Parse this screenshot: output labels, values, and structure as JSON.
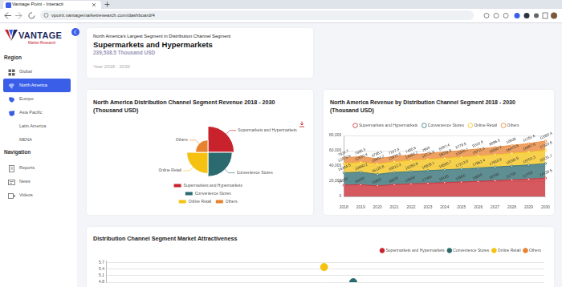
{
  "browser": {
    "tab_title": "Vantage Point - Interacti",
    "url": "vpoint.vantagemarketresearch.com/dashboard/4"
  },
  "sidebar": {
    "logo": "VANTAGE",
    "logo_tagline": "Market Research",
    "region_heading": "Region",
    "regions": [
      {
        "label": "Global"
      },
      {
        "label": "North America",
        "selected": true
      },
      {
        "label": "Europe"
      },
      {
        "label": "Asia Pacific"
      },
      {
        "label": "Latin America"
      },
      {
        "label": "MENA"
      }
    ],
    "navigation_heading": "Navigation",
    "navigation": [
      "Reports",
      "News",
      "Videos"
    ]
  },
  "summary": {
    "heading": "North America's Largest Segment in Distribution Channel Segment",
    "segment": "Supermarkets and Hypermarkets",
    "value": "239,538.5 Thousand USD",
    "period": "Year 2018 - 2030"
  },
  "chart_data": [
    {
      "type": "polarArea",
      "title": "North America Distribution Channel Segment Revenue 2018 - 2030 (Thousand USD)",
      "categories": [
        "Supermarkets and Hypermarkets",
        "Convenience Stores",
        "Online Retail",
        "Others"
      ],
      "values": [
        239538.5,
        222378.8,
        194463.5,
        114651.2
      ],
      "colors": [
        "#c8232c",
        "#2b6a6e",
        "#f5c211",
        "#e8822f"
      ],
      "legend": "bottom",
      "tick_labels": false
    },
    {
      "type": "area",
      "title": "North America Revenue by Distribution Channel Segment 2018 - 2030 (Thousand USD)",
      "categories": [
        "2018",
        "2019",
        "2020",
        "2021",
        "2022",
        "2023",
        "2024",
        "2025",
        "2026",
        "2027",
        "2028",
        "2029",
        "2030"
      ],
      "series": [
        {
          "name": "Supermarkets and Hypermarkets",
          "color": "#c8232c",
          "values": [
            14800,
            15400,
            13900,
            15600,
            16500,
            17300,
            18100,
            18900,
            19800,
            20700,
            21700,
            22700,
            24138.5
          ]
        },
        {
          "name": "Convenience Stores",
          "color": "#2b6a6e",
          "values": [
            16204.5,
            16560.2,
            15120.8,
            16012.3,
            16250.9,
            16538.1,
            16880.7,
            17213.6,
            17562.4,
            17910.8,
            18290.5,
            18702.3,
            19131.7
          ]
        },
        {
          "name": "Online Retail",
          "color": "#f5c211",
          "values": [
            12079.6,
            12830.4,
            13604.2,
            13970.5,
            14388.2,
            14721.6,
            15032.9,
            15360.7,
            15711.3,
            16082.2,
            16473.5,
            16887.6,
            17320.8
          ]
        },
        {
          "name": "Others",
          "color": "#e8822f",
          "values": [
            7531.7,
            7696.3,
            6798.1,
            7107.4,
            7458.5,
            7904,
            8297.4,
            8779.5,
            9310.8,
            9896.5,
            10539,
            11251.6,
            12080.4
          ]
        }
      ],
      "stacked": true,
      "ylim": [
        0,
        80000
      ],
      "yticks": [
        0,
        {
          "value": 20000,
          "label": "20,000"
        },
        {
          "value": 40000,
          "label": "40,000"
        },
        {
          "value": 60000,
          "label": "60,000"
        },
        {
          "value": 80000,
          "label": "80,000"
        }
      ],
      "grid": true,
      "legend": "top",
      "data_labels": true
    },
    {
      "type": "scatter",
      "title": "Distribution Channel Segment Market Attractiveness",
      "series": [
        {
          "name": "Supermarkets and Hypermarkets",
          "color": "#c8232c",
          "x": [],
          "y": []
        },
        {
          "name": "Convenience Stores",
          "color": "#2b6a6e",
          "x": [
            16.9
          ],
          "y": [
            4.8
          ]
        },
        {
          "name": "Online Retail",
          "color": "#f5c211",
          "x": [
            14.9
          ],
          "y": [
            5.5
          ]
        },
        {
          "name": "Others",
          "color": "#e8822f",
          "x": [],
          "y": []
        }
      ],
      "xlim": [
        0,
        30
      ],
      "ylim": [
        4.8,
        5.8
      ],
      "yticks": [
        4.8,
        5.1,
        5.4,
        5.7
      ],
      "grid": true,
      "legend": "top right",
      "tick_labels": "y"
    }
  ]
}
